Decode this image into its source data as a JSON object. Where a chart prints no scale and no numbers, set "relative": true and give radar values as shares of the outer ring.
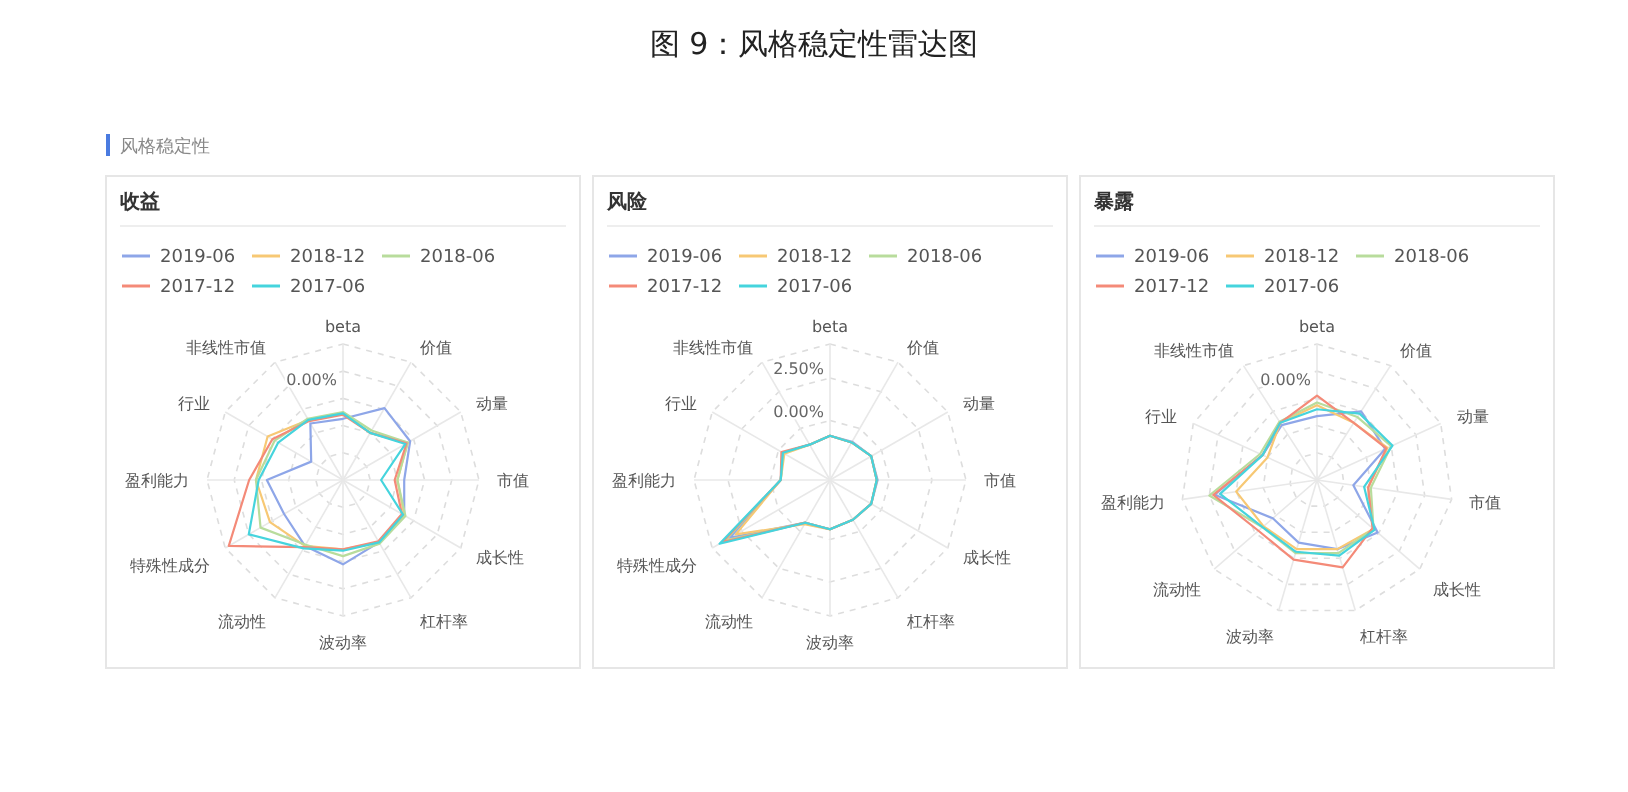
{
  "chart_data": [
    {
      "type": "other",
      "title": "图 9：风格稳定性雷达图",
      "subtitle": "风格稳定性"
    },
    {
      "type": "radar",
      "title": "收益",
      "relative": true,
      "grid": true,
      "legend": "top",
      "annotations": [
        "0.00%"
      ],
      "categories": [
        "beta",
        "价值",
        "动量",
        "市值",
        "成长性",
        "杠杆率",
        "波动率",
        "流动性",
        "特殊性成分",
        "盈利能力",
        "行业",
        "非线性市值"
      ],
      "series": [
        {
          "name": "2019-06",
          "color": "#8ea6e8",
          "values": [
            0.45,
            0.61,
            0.57,
            0.45,
            0.52,
            0.53,
            0.62,
            0.56,
            0.5,
            0.56,
            0.27,
            0.48
          ]
        },
        {
          "name": "2018-12",
          "color": "#f7c874",
          "values": [
            0.49,
            0.4,
            0.55,
            0.4,
            0.52,
            0.53,
            0.51,
            0.56,
            0.62,
            0.64,
            0.64,
            0.51
          ]
        },
        {
          "name": "2018-06",
          "color": "#b8dc9c",
          "values": [
            0.5,
            0.42,
            0.55,
            0.4,
            0.53,
            0.54,
            0.56,
            0.55,
            0.7,
            0.64,
            0.58,
            0.52
          ]
        },
        {
          "name": "2017-12",
          "color": "#f48a78",
          "values": [
            0.48,
            0.4,
            0.54,
            0.38,
            0.5,
            0.52,
            0.51,
            0.57,
            0.97,
            0.69,
            0.6,
            0.5
          ]
        },
        {
          "name": "2017-06",
          "color": "#45d4dd",
          "values": [
            0.49,
            0.4,
            0.53,
            0.28,
            0.51,
            0.53,
            0.52,
            0.58,
            0.8,
            0.62,
            0.55,
            0.51
          ]
        }
      ]
    },
    {
      "type": "radar",
      "title": "风险",
      "grid": true,
      "legend": "top",
      "ylim": [
        -3.5,
        4.5
      ],
      "yticks": [
        {
          "value": 0,
          "label": "0.00%"
        },
        {
          "value": 2.5,
          "label": "2.50%"
        }
      ],
      "categories": [
        "beta",
        "价值",
        "动量",
        "市值",
        "成长性",
        "杠杆率",
        "波动率",
        "流动性",
        "特殊性成分",
        "盈利能力",
        "行业",
        "非线性市值"
      ],
      "series": [
        {
          "name": "2019-06",
          "color": "#8ea6e8",
          "values": [
            -0.9,
            -0.9,
            -0.7,
            -0.7,
            -0.7,
            -0.8,
            -0.6,
            -0.6,
            3.3,
            -0.6,
            -0.3,
            -1.1
          ]
        },
        {
          "name": "2018-12",
          "color": "#f7c874",
          "values": [
            -0.9,
            -0.95,
            -0.7,
            -0.75,
            -0.7,
            -0.8,
            -0.6,
            -0.5,
            2.9,
            -0.6,
            -0.4,
            -1.1
          ]
        },
        {
          "name": "2018-06",
          "color": "#b8dc9c",
          "values": [
            -0.9,
            -0.95,
            -0.7,
            -0.75,
            -0.7,
            -0.8,
            -0.6,
            -0.6,
            3.6,
            -0.6,
            -0.3,
            -1.1
          ]
        },
        {
          "name": "2017-12",
          "color": "#f48a78",
          "values": [
            -0.9,
            -0.95,
            -0.7,
            -0.75,
            -0.7,
            -0.8,
            -0.6,
            -0.6,
            3.8,
            -0.6,
            -0.2,
            -1.1
          ]
        },
        {
          "name": "2017-06",
          "color": "#45d4dd",
          "values": [
            -0.9,
            -0.95,
            -0.7,
            -0.75,
            -0.7,
            -0.8,
            -0.6,
            -0.6,
            4.0,
            -0.6,
            -0.3,
            -1.1
          ]
        }
      ]
    },
    {
      "type": "radar",
      "title": "暴露",
      "relative": true,
      "grid": true,
      "legend": "top",
      "annotations": [
        "0.00%"
      ],
      "categories": [
        "beta",
        "价值",
        "动量",
        "市值",
        "成长性",
        "杠杆率",
        "波动率",
        "流动性",
        "盈利能力",
        "行业",
        "非线性市值"
      ],
      "series": [
        {
          "name": "2019-06",
          "color": "#8ea6e8",
          "values": [
            0.47,
            0.6,
            0.55,
            0.27,
            0.59,
            0.53,
            0.48,
            0.43,
            0.76,
            0.44,
            0.48
          ]
        },
        {
          "name": "2018-12",
          "color": "#f7c874",
          "values": [
            0.55,
            0.5,
            0.57,
            0.38,
            0.55,
            0.53,
            0.53,
            0.52,
            0.6,
            0.4,
            0.5
          ]
        },
        {
          "name": "2018-06",
          "color": "#b8dc9c",
          "values": [
            0.57,
            0.55,
            0.6,
            0.4,
            0.55,
            0.56,
            0.56,
            0.53,
            0.8,
            0.46,
            0.51
          ]
        },
        {
          "name": "2017-12",
          "color": "#f48a78",
          "values": [
            0.62,
            0.5,
            0.56,
            0.38,
            0.54,
            0.67,
            0.61,
            0.57,
            0.77,
            0.44,
            0.5
          ]
        },
        {
          "name": "2017-06",
          "color": "#45d4dd",
          "values": [
            0.52,
            0.58,
            0.61,
            0.35,
            0.56,
            0.58,
            0.55,
            0.53,
            0.72,
            0.44,
            0.5
          ]
        }
      ]
    }
  ]
}
